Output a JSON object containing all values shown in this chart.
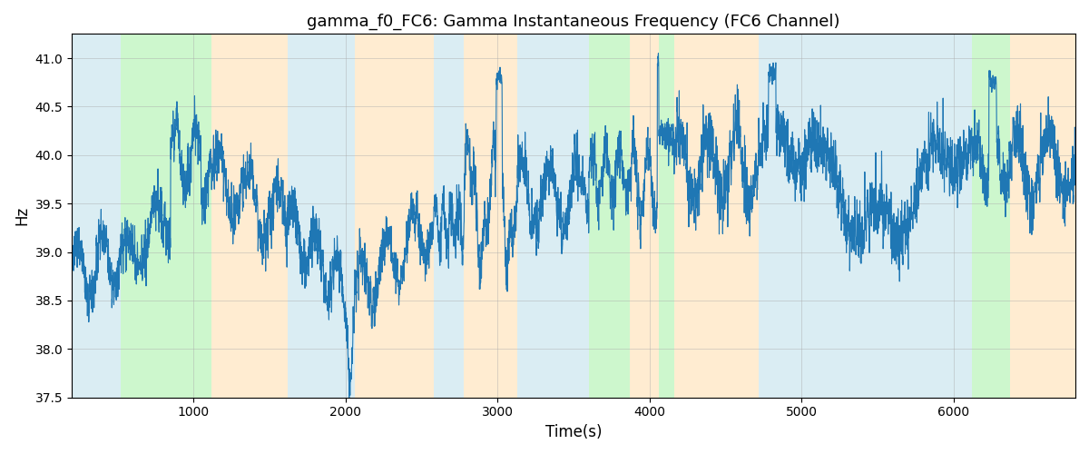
{
  "title": "gamma_f0_FC6: Gamma Instantaneous Frequency (FC6 Channel)",
  "xlabel": "Time(s)",
  "ylabel": "Hz",
  "xlim": [
    200,
    6800
  ],
  "ylim": [
    37.5,
    41.25
  ],
  "line_color": "#1f77b4",
  "line_width": 0.8,
  "background_color": "#ffffff",
  "grid_color": "#aaaaaa",
  "grid_alpha": 0.6,
  "title_fontsize": 13,
  "label_fontsize": 12,
  "seed": 12345,
  "x_start": 200,
  "x_end": 6800,
  "bg_regions": [
    {
      "xmin": 200,
      "xmax": 520,
      "color": "#add8e6",
      "alpha": 0.45
    },
    {
      "xmin": 520,
      "xmax": 1120,
      "color": "#90ee90",
      "alpha": 0.45
    },
    {
      "xmin": 1120,
      "xmax": 1620,
      "color": "#ffd59a",
      "alpha": 0.45
    },
    {
      "xmin": 1620,
      "xmax": 2060,
      "color": "#add8e6",
      "alpha": 0.45
    },
    {
      "xmin": 2060,
      "xmax": 2580,
      "color": "#ffd59a",
      "alpha": 0.45
    },
    {
      "xmin": 2580,
      "xmax": 2780,
      "color": "#add8e6",
      "alpha": 0.45
    },
    {
      "xmin": 2780,
      "xmax": 3130,
      "color": "#ffd59a",
      "alpha": 0.45
    },
    {
      "xmin": 3130,
      "xmax": 3600,
      "color": "#add8e6",
      "alpha": 0.45
    },
    {
      "xmin": 3600,
      "xmax": 3870,
      "color": "#90ee90",
      "alpha": 0.45
    },
    {
      "xmin": 3870,
      "xmax": 4060,
      "color": "#ffd59a",
      "alpha": 0.45
    },
    {
      "xmin": 4060,
      "xmax": 4160,
      "color": "#90ee90",
      "alpha": 0.45
    },
    {
      "xmin": 4160,
      "xmax": 4720,
      "color": "#ffd59a",
      "alpha": 0.45
    },
    {
      "xmin": 4720,
      "xmax": 6120,
      "color": "#add8e6",
      "alpha": 0.45
    },
    {
      "xmin": 6120,
      "xmax": 6370,
      "color": "#90ee90",
      "alpha": 0.45
    },
    {
      "xmin": 6370,
      "xmax": 6800,
      "color": "#ffd59a",
      "alpha": 0.45
    }
  ],
  "yticks": [
    37.5,
    38.0,
    38.5,
    39.0,
    39.5,
    40.0,
    40.5,
    41.0
  ],
  "xticks": [
    1000,
    2000,
    3000,
    4000,
    5000,
    6000
  ]
}
